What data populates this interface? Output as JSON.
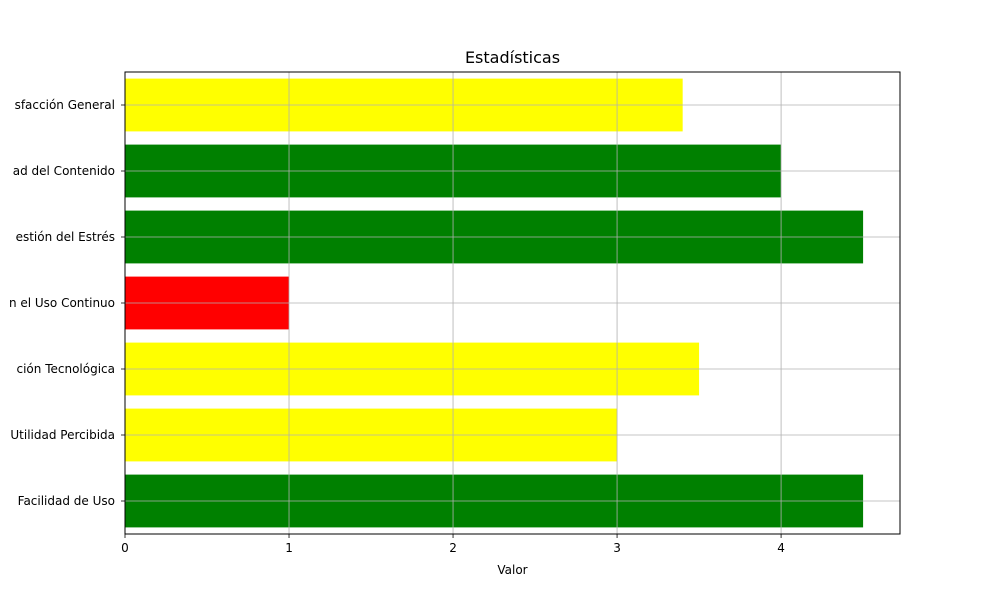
{
  "chart_data": {
    "type": "bar",
    "orientation": "horizontal",
    "title": "Estadísticas",
    "xlabel": "Valor",
    "ylabel": "",
    "xlim": [
      0,
      4.725
    ],
    "xticks": [
      0,
      1,
      2,
      3,
      4
    ],
    "grid": true,
    "categories": [
      "Facilidad de Uso",
      "Utilidad Percibida",
      "Adaptación Tecnológica",
      "Intención en el Uso Continuo",
      "Gestión del Estrés",
      "Calidad del Contenido",
      "Satisfacción General"
    ],
    "visible_category_labels": [
      "Facilidad de Uso",
      "Utilidad Percibida",
      "ción Tecnológica",
      "n el Uso Continuo",
      "estión del Estrés",
      "ad del Contenido",
      "sfacción General"
    ],
    "values": [
      4.5,
      3.0,
      3.5,
      1.0,
      4.5,
      4.0,
      3.4
    ],
    "bar_colors": [
      "#008000",
      "#ffff00",
      "#ffff00",
      "#ff0000",
      "#008000",
      "#008000",
      "#ffff00"
    ]
  }
}
